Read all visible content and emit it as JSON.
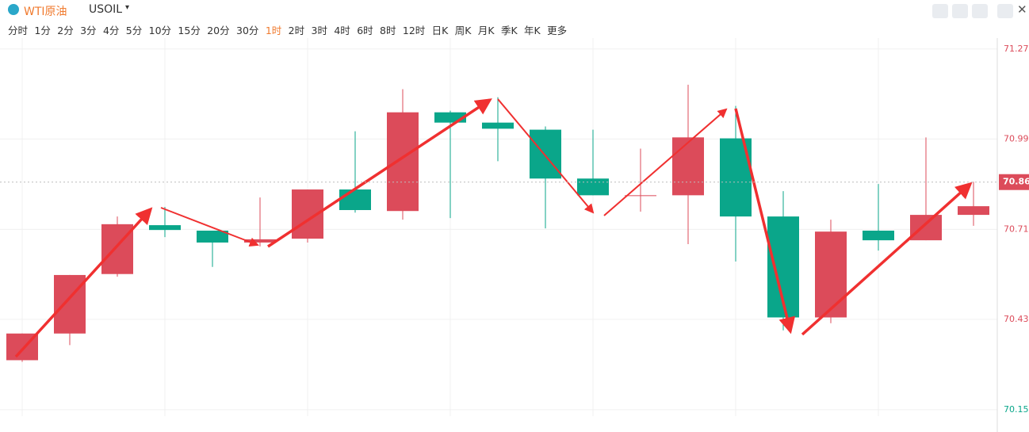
{
  "header": {
    "title": "WTI原油",
    "symbol": "USOIL",
    "periods": [
      "分时",
      "1分",
      "2分",
      "3分",
      "4分",
      "5分",
      "10分",
      "15分",
      "20分",
      "30分",
      "1时",
      "2时",
      "3时",
      "4时",
      "6时",
      "8时",
      "12时",
      "日K",
      "周K",
      "月K",
      "季K",
      "年K",
      "更多"
    ],
    "active_period": 10
  },
  "chart_data": {
    "type": "candlestick",
    "open": [
      70.306,
      70.389,
      70.574,
      70.726,
      70.709,
      70.672,
      70.684,
      70.837,
      70.77,
      71.077,
      71.045,
      71.023,
      70.871,
      70.817,
      70.819,
      70.996,
      70.753,
      70.439,
      70.709,
      70.679,
      70.758
    ],
    "high": [
      70.389,
      70.571,
      70.753,
      70.783,
      70.709,
      70.812,
      70.837,
      71.018,
      71.149,
      71.082,
      71.124,
      71.033,
      71.023,
      70.964,
      71.163,
      71.097,
      70.832,
      70.743,
      70.854,
      70.999,
      70.861
    ],
    "low": [
      70.301,
      70.353,
      70.566,
      70.689,
      70.596,
      70.66,
      70.672,
      70.765,
      70.743,
      70.748,
      70.925,
      70.716,
      70.819,
      70.768,
      70.667,
      70.613,
      70.399,
      70.421,
      70.647,
      70.679,
      70.724
    ],
    "close": [
      70.389,
      70.571,
      70.729,
      70.711,
      70.672,
      70.682,
      70.837,
      70.773,
      71.077,
      71.045,
      71.026,
      70.871,
      70.819,
      70.819,
      70.999,
      70.753,
      70.439,
      70.706,
      70.679,
      70.758,
      70.785
    ],
    "up_color": "#dc4b5a",
    "down_color": "#0aa68a",
    "ylim": [
      70.132,
      71.308
    ],
    "yticks": [
      71.274,
      70.994,
      70.713,
      70.433,
      70.152
    ],
    "ytick_colors": [
      "#dc4b5a",
      "#dc4b5a",
      "#dc4b5a",
      "#dc4b5a",
      "#0aa68a"
    ],
    "current_price": {
      "value": 70.86,
      "label": "70.860"
    },
    "grid": true
  }
}
